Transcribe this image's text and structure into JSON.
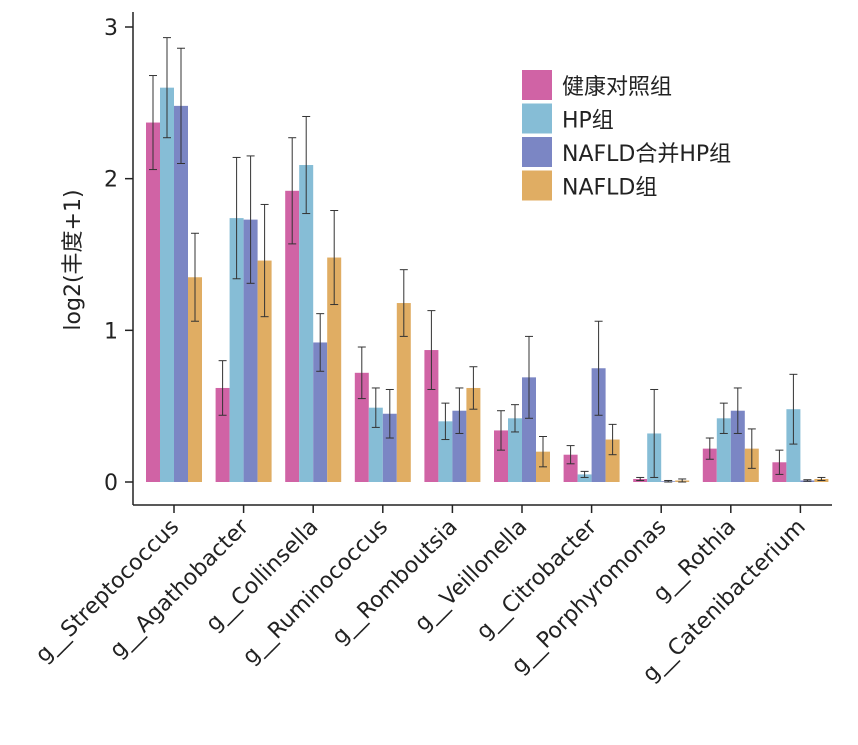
{
  "chart_data": {
    "type": "bar",
    "title": "",
    "xlabel": "",
    "ylabel": "log2(丰度+1)",
    "ylim": [
      0,
      3
    ],
    "yticks": [
      "0",
      "1",
      "2",
      "3"
    ],
    "grid": false,
    "legend_position": "top-right",
    "categories": [
      "g__Streptococcus",
      "g__Agathobacter",
      "g__Collinsella",
      "g__Ruminococcus",
      "g__Romboutsia",
      "g__Veillonella",
      "g__Citrobacter",
      "g__Porphyromonas",
      "g__Rothia",
      "g__Catenibacterium"
    ],
    "series": [
      {
        "name": "健康对照组",
        "color": "#d063a5",
        "values": [
          2.37,
          0.62,
          1.92,
          0.72,
          0.87,
          0.34,
          0.18,
          0.02,
          0.22,
          0.13
        ],
        "errors": [
          0.31,
          0.18,
          0.35,
          0.17,
          0.26,
          0.13,
          0.06,
          0.01,
          0.07,
          0.08
        ]
      },
      {
        "name": "HP组",
        "color": "#86bdd6",
        "values": [
          2.6,
          1.74,
          2.09,
          0.49,
          0.4,
          0.42,
          0.05,
          0.32,
          0.42,
          0.48
        ],
        "errors": [
          0.33,
          0.4,
          0.32,
          0.13,
          0.12,
          0.09,
          0.02,
          0.29,
          0.1,
          0.23
        ]
      },
      {
        "name": "NAFLD合并HP组",
        "color": "#7b86c4",
        "values": [
          2.48,
          1.73,
          0.92,
          0.45,
          0.47,
          0.69,
          0.75,
          0.005,
          0.47,
          0.01
        ],
        "errors": [
          0.38,
          0.42,
          0.19,
          0.16,
          0.15,
          0.27,
          0.31,
          0.005,
          0.15,
          0.005
        ]
      },
      {
        "name": "NAFLD组",
        "color": "#e0ad63",
        "values": [
          1.35,
          1.46,
          1.48,
          1.18,
          0.62,
          0.2,
          0.28,
          0.01,
          0.22,
          0.02
        ],
        "errors": [
          0.29,
          0.37,
          0.31,
          0.22,
          0.14,
          0.1,
          0.1,
          0.01,
          0.13,
          0.01
        ]
      }
    ]
  }
}
